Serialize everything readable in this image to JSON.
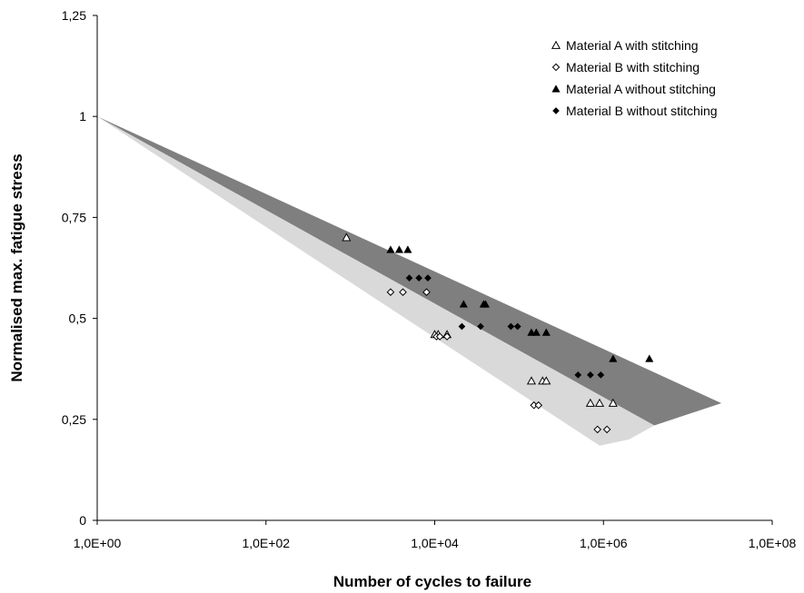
{
  "chart_data": {
    "type": "scatter",
    "xlabel": "Number of cycles to failure",
    "ylabel": "Normalised max. fatigue stress",
    "x_scale": "log",
    "xlim": [
      1,
      100000000
    ],
    "ylim": [
      0,
      1.25
    ],
    "x_ticks": [
      1,
      100,
      10000,
      1000000,
      100000000
    ],
    "x_tick_labels": [
      "1,0E+00",
      "1,0E+02",
      "1,0E+04",
      "1,0E+06",
      "1,0E+08"
    ],
    "y_ticks": [
      0,
      0.25,
      0.5,
      0.75,
      1,
      1.25
    ],
    "y_tick_labels": [
      "0",
      "0,25",
      "0,5",
      "0,75",
      "1",
      "1,25"
    ],
    "grid": false,
    "legend_position": "top-right",
    "colors": {
      "dark_band": "#7f7f7f",
      "light_band": "#d9d9d9",
      "marker": "#000000"
    },
    "bands": [
      {
        "fill": "#7f7f7f",
        "points": [
          [
            1,
            1.0
          ],
          [
            25000000,
            0.29
          ],
          [
            4000000,
            0.235
          ]
        ]
      },
      {
        "fill": "#d9d9d9",
        "points": [
          [
            1,
            1.0
          ],
          [
            4000000,
            0.235
          ],
          [
            2000000,
            0.2
          ],
          [
            900000,
            0.185
          ]
        ]
      }
    ],
    "series": [
      {
        "name": "Material A with stitching",
        "marker": "triangle-open",
        "points": [
          [
            900,
            0.7
          ],
          [
            10000,
            0.46
          ],
          [
            11000,
            0.46
          ],
          [
            14000,
            0.46
          ],
          [
            140000,
            0.345
          ],
          [
            190000,
            0.345
          ],
          [
            210000,
            0.345
          ],
          [
            700000,
            0.29
          ],
          [
            900000,
            0.29
          ],
          [
            1300000,
            0.29
          ]
        ]
      },
      {
        "name": "Material B with stitching",
        "marker": "diamond-open",
        "points": [
          [
            3000,
            0.565
          ],
          [
            4200,
            0.565
          ],
          [
            8000,
            0.565
          ],
          [
            10500,
            0.455
          ],
          [
            11500,
            0.455
          ],
          [
            14000,
            0.455
          ],
          [
            150000,
            0.285
          ],
          [
            170000,
            0.285
          ],
          [
            850000,
            0.225
          ],
          [
            1100000,
            0.225
          ]
        ]
      },
      {
        "name": "Material A without stitching",
        "marker": "triangle-filled",
        "points": [
          [
            3000,
            0.67
          ],
          [
            3800,
            0.67
          ],
          [
            4800,
            0.67
          ],
          [
            22000,
            0.535
          ],
          [
            38000,
            0.535
          ],
          [
            40000,
            0.535
          ],
          [
            140000,
            0.465
          ],
          [
            160000,
            0.465
          ],
          [
            210000,
            0.465
          ],
          [
            1300000,
            0.4
          ],
          [
            3500000,
            0.4
          ]
        ]
      },
      {
        "name": "Material B without stitching",
        "marker": "diamond-filled",
        "points": [
          [
            5000,
            0.6
          ],
          [
            6500,
            0.6
          ],
          [
            8300,
            0.6
          ],
          [
            21000,
            0.48
          ],
          [
            35000,
            0.48
          ],
          [
            80000,
            0.48
          ],
          [
            96000,
            0.48
          ],
          [
            500000,
            0.36
          ],
          [
            700000,
            0.36
          ],
          [
            930000,
            0.36
          ]
        ]
      }
    ]
  }
}
